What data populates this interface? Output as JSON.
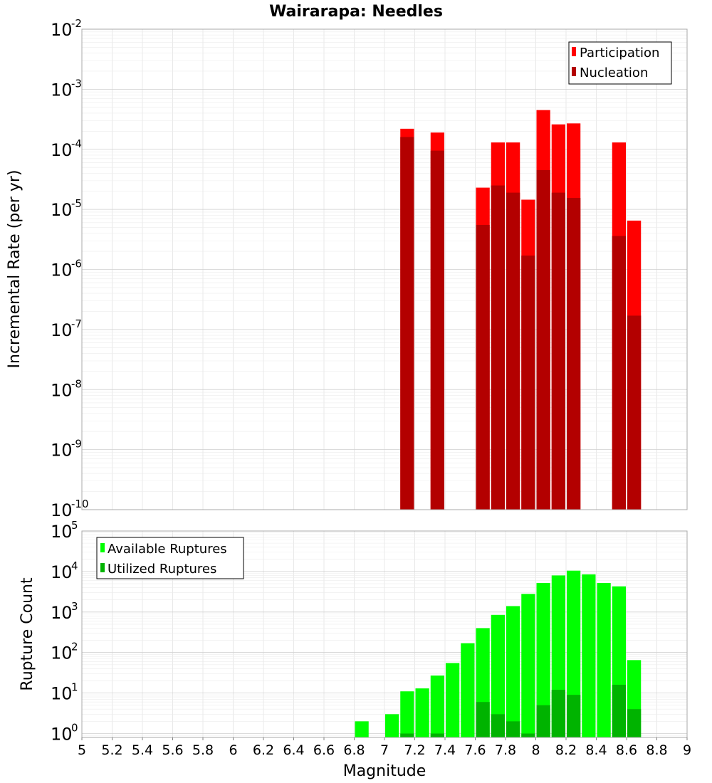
{
  "chart_data": {
    "title": "Wairarapa: Needles",
    "xlabel": "Magnitude",
    "xlim": [
      5,
      9
    ],
    "x_ticks": [
      "5",
      "5.2",
      "5.4",
      "5.6",
      "5.8",
      "6",
      "6.2",
      "6.4",
      "6.6",
      "6.8",
      "7",
      "7.2",
      "7.4",
      "7.6",
      "7.8",
      "8",
      "8.2",
      "8.4",
      "8.6",
      "8.8",
      "9"
    ],
    "bin_width": 0.1,
    "panels": [
      {
        "type": "bar",
        "ylabel": "Incremental Rate (per yr)",
        "yscale": "log",
        "ylim": [
          1e-10,
          0.01
        ],
        "y_tick_exponents": [
          "-10",
          "-9",
          "-8",
          "-7",
          "-6",
          "-5",
          "-4",
          "-3",
          "-2"
        ],
        "legend": {
          "location": "top-right"
        },
        "grid": true,
        "series": [
          {
            "name": "Participation",
            "color": "#ff0000",
            "points": [
              {
                "x": 7.15,
                "y": 0.00022
              },
              {
                "x": 7.35,
                "y": 0.00019
              },
              {
                "x": 7.65,
                "y": 2.3e-05
              },
              {
                "x": 7.75,
                "y": 0.00013
              },
              {
                "x": 7.85,
                "y": 0.00013
              },
              {
                "x": 7.95,
                "y": 1.45e-05
              },
              {
                "x": 8.05,
                "y": 0.00045
              },
              {
                "x": 8.15,
                "y": 0.00026
              },
              {
                "x": 8.25,
                "y": 0.00027
              },
              {
                "x": 8.55,
                "y": 0.00013
              },
              {
                "x": 8.65,
                "y": 6.5e-06
              }
            ]
          },
          {
            "name": "Nucleation",
            "color": "#b30000",
            "points": [
              {
                "x": 7.15,
                "y": 0.00016
              },
              {
                "x": 7.35,
                "y": 9.5e-05
              },
              {
                "x": 7.65,
                "y": 5.5e-06
              },
              {
                "x": 7.75,
                "y": 2.5e-05
              },
              {
                "x": 7.85,
                "y": 1.9e-05
              },
              {
                "x": 7.95,
                "y": 1.7e-06
              },
              {
                "x": 8.05,
                "y": 4.5e-05
              },
              {
                "x": 8.15,
                "y": 1.9e-05
              },
              {
                "x": 8.25,
                "y": 1.55e-05
              },
              {
                "x": 8.55,
                "y": 3.6e-06
              },
              {
                "x": 8.65,
                "y": 1.7e-07
              }
            ]
          }
        ]
      },
      {
        "type": "bar",
        "ylabel": "Rupture Count",
        "yscale": "log",
        "ylim": [
          0.8,
          100000.0
        ],
        "y_tick_exponents": [
          "0",
          "1",
          "2",
          "3",
          "4",
          "5"
        ],
        "legend": {
          "location": "top-left"
        },
        "grid": true,
        "series": [
          {
            "name": "Available Ruptures",
            "color": "#00ff00",
            "points": [
              {
                "x": 6.85,
                "y": 2
              },
              {
                "x": 7.05,
                "y": 3
              },
              {
                "x": 7.15,
                "y": 11
              },
              {
                "x": 7.25,
                "y": 13
              },
              {
                "x": 7.35,
                "y": 27
              },
              {
                "x": 7.45,
                "y": 55
              },
              {
                "x": 7.55,
                "y": 170
              },
              {
                "x": 7.65,
                "y": 400
              },
              {
                "x": 7.75,
                "y": 850
              },
              {
                "x": 7.85,
                "y": 1400
              },
              {
                "x": 7.95,
                "y": 2800
              },
              {
                "x": 8.05,
                "y": 5200
              },
              {
                "x": 8.15,
                "y": 8000
              },
              {
                "x": 8.25,
                "y": 10500
              },
              {
                "x": 8.35,
                "y": 8500
              },
              {
                "x": 8.45,
                "y": 5200
              },
              {
                "x": 8.55,
                "y": 4300
              },
              {
                "x": 8.65,
                "y": 65
              }
            ]
          },
          {
            "name": "Utilized Ruptures",
            "color": "#00b300",
            "points": [
              {
                "x": 7.15,
                "y": 1
              },
              {
                "x": 7.35,
                "y": 1
              },
              {
                "x": 7.65,
                "y": 6
              },
              {
                "x": 7.75,
                "y": 3
              },
              {
                "x": 7.85,
                "y": 2
              },
              {
                "x": 7.95,
                "y": 1
              },
              {
                "x": 8.05,
                "y": 5
              },
              {
                "x": 8.15,
                "y": 12
              },
              {
                "x": 8.25,
                "y": 9
              },
              {
                "x": 8.55,
                "y": 16
              },
              {
                "x": 8.65,
                "y": 4
              }
            ]
          }
        ]
      }
    ]
  }
}
